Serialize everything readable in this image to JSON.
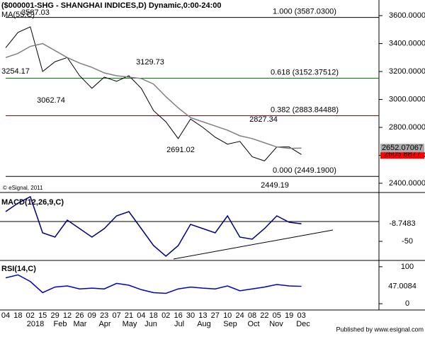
{
  "header": "($000001-SHG - SHANGHAI INDICES,D) Dynamic,0:00-24:00",
  "copyright": "© eSignal, 2011",
  "publisher": "Published by www.esignal.com",
  "chart_data": [
    {
      "type": "line",
      "title": "MA(55,C)",
      "categories": [
        "04",
        "18",
        "02",
        "15",
        "29",
        "12",
        "26",
        "09",
        "23",
        "07",
        "21",
        "04",
        "18",
        "02",
        "16",
        "30",
        "13",
        "27",
        "10",
        "24",
        "08",
        "22",
        "05",
        "19",
        "03"
      ],
      "months": [
        "2018",
        "Feb",
        "Mar",
        "Apr",
        "May",
        "Jun",
        "Jul",
        "Aug",
        "Sep",
        "Oct",
        "Nov",
        "Dec"
      ],
      "series": [
        {
          "color": "#000000",
          "values": [
            3370,
            3480,
            3520,
            3200,
            3270,
            3300,
            3170,
            3080,
            3160,
            3130,
            3170,
            3080,
            2920,
            2840,
            2720,
            2860,
            2800,
            2730,
            2680,
            2700,
            2590,
            2560,
            2660,
            2660,
            2605.8877
          ]
        },
        {
          "color": "#808080",
          "values": [
            3300,
            3330,
            3380,
            3400,
            3350,
            3300,
            3260,
            3230,
            3190,
            3170,
            3160,
            3150,
            3110,
            3020,
            2940,
            2870,
            2840,
            2810,
            2780,
            2740,
            2720,
            2690,
            2660,
            2650,
            2652.07067
          ]
        }
      ],
      "ylim": [
        2334,
        3712
      ],
      "yticks": [
        {
          "value": 2400,
          "label": "2400.0000"
        },
        {
          "value": 2600,
          "label": "2600.0000"
        },
        {
          "value": 2800,
          "label": "2800.0000"
        },
        {
          "value": 3000,
          "label": "3000.0000"
        },
        {
          "value": 3200,
          "label": "3200.0000"
        },
        {
          "value": 3400,
          "label": "3400.0000"
        },
        {
          "value": 3600,
          "label": "3600.0000"
        }
      ],
      "levels": [
        {
          "value": 3587.03,
          "label": "1.000 (3587.0300)",
          "color": "#000000"
        },
        {
          "value": 3152.37512,
          "label": "0.618 (3152.37512)",
          "color": "#008000"
        },
        {
          "value": 2883.84488,
          "label": "0.382 (2883.84488)",
          "color": "#a00000"
        },
        {
          "value": 2449.19,
          "label": "0.000 (2449.1900)",
          "color": "#000000"
        }
      ],
      "annotations": [
        "3587.03",
        "3254.17",
        "3062.74",
        "3129.73",
        "2691.02",
        "2827.34",
        "2449.19"
      ]
    },
    {
      "type": "line",
      "title": "MACD(12,26,9,C)",
      "series": [
        {
          "color": "#000080",
          "values": [
            20,
            40,
            55,
            -30,
            -40,
            0,
            -20,
            -40,
            -20,
            10,
            20,
            -20,
            -60,
            -85,
            -60,
            -10,
            -20,
            -30,
            10,
            -40,
            -45,
            -20,
            10,
            -5,
            -8.7483
          ]
        }
      ],
      "ylim": [
        -95,
        65
      ],
      "yticks": [
        -50
      ]
    },
    {
      "type": "line",
      "title": "RSI(14,C)",
      "series": [
        {
          "color": "#0000cc",
          "values": [
            70,
            78,
            60,
            30,
            45,
            48,
            40,
            42,
            40,
            55,
            50,
            38,
            30,
            28,
            40,
            45,
            42,
            40,
            48,
            35,
            40,
            45,
            52,
            48,
            47.0084
          ]
        }
      ],
      "ylim": [
        -17,
        117
      ],
      "yticks": [
        0,
        100
      ]
    }
  ]
}
